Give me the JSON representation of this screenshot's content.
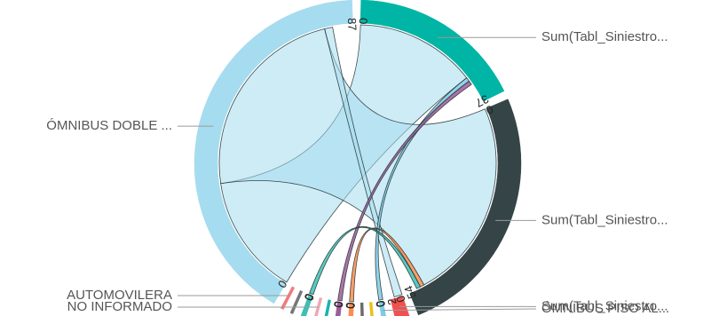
{
  "chart_data": {
    "type": "chord",
    "title": "",
    "groups": [
      {
        "label": "Sum(Tabl_Siniestro...",
        "value": 37,
        "color": "#00b5a5",
        "tick_start": "0",
        "tick_end": "37"
      },
      {
        "label": "Sum(Tabl_Siniestro...",
        "value": 54,
        "color": "#344447",
        "tick_start": "0",
        "tick_end": "54"
      },
      {
        "label": "Sum(Tabl_Siniestro...",
        "value": 3,
        "color": "#f2504e",
        "tick_start": "0",
        "tick_end": "2"
      },
      {
        "label": "ÓMNIBUS PISO AL...",
        "value": 1,
        "color": "#7ecce5",
        "tick_start": "0",
        "tick_end": "0"
      },
      {
        "label": "",
        "value": 0.3,
        "color": "#e8c21a",
        "tick_start": "",
        "tick_end": ""
      },
      {
        "label": "",
        "value": 0.3,
        "color": "#6b6b6b",
        "tick_start": "",
        "tick_end": ""
      },
      {
        "label": "",
        "value": 1,
        "color": "#ff8c4f",
        "tick_start": "0",
        "tick_end": "0"
      },
      {
        "label": "",
        "value": 1,
        "color": "#9b5c99",
        "tick_start": "0",
        "tick_end": "0"
      },
      {
        "label": "",
        "value": 0.3,
        "color": "#1ab3b0",
        "tick_start": "",
        "tick_end": ""
      },
      {
        "label": "NO INFORMADO",
        "value": 0.3,
        "color": "#f1a7b3",
        "tick_start": "",
        "tick_end": ""
      },
      {
        "label": "",
        "value": 1,
        "color": "#3dbfb5",
        "tick_start": "0",
        "tick_end": "0"
      },
      {
        "label": "",
        "value": 0.3,
        "color": "#777777",
        "tick_start": "",
        "tick_end": ""
      },
      {
        "label": "AUTOMOVILERA",
        "value": 0.3,
        "color": "#f07b7b",
        "tick_start": "",
        "tick_end": ""
      },
      {
        "label": "ÓMNIBUS DOBLE ...",
        "value": 87,
        "color": "#a6dcef",
        "tick_start": "0",
        "tick_end": "87"
      }
    ],
    "flows": [
      {
        "from": 13,
        "to": 0,
        "value": 30
      },
      {
        "from": 13,
        "to": 1,
        "value": 50
      },
      {
        "from": 13,
        "to": 2,
        "value": 2
      },
      {
        "from": 3,
        "to": 0,
        "value": 1
      },
      {
        "from": 6,
        "to": 1,
        "value": 1
      },
      {
        "from": 7,
        "to": 0,
        "value": 1
      },
      {
        "from": 10,
        "to": 1,
        "value": 1
      }
    ]
  }
}
